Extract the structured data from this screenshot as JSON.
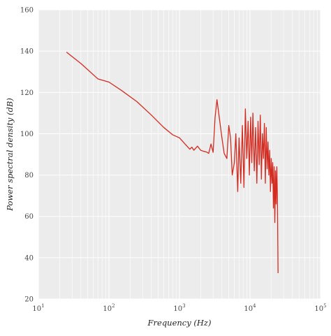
{
  "chart_data": {
    "type": "line",
    "xlabel": "Frequency (Hz)",
    "ylabel": "Power spectral density (dB)",
    "xscale": "log",
    "xlim": [
      10,
      100000
    ],
    "ylim": [
      20,
      160
    ],
    "x_ticks": [
      {
        "base": "10",
        "exp": "1",
        "value": 10
      },
      {
        "base": "10",
        "exp": "2",
        "value": 100
      },
      {
        "base": "10",
        "exp": "3",
        "value": 1000
      },
      {
        "base": "10",
        "exp": "4",
        "value": 10000
      },
      {
        "base": "10",
        "exp": "5",
        "value": 100000
      }
    ],
    "y_ticks": [
      "20",
      "40",
      "60",
      "80",
      "100",
      "120",
      "140",
      "160"
    ],
    "grid": true,
    "background_color": "#ececec",
    "grid_color": "#ffffff",
    "series": [
      {
        "color": "#d42a1f",
        "x": [
          25,
          40,
          70,
          100,
          150,
          250,
          400,
          600,
          800,
          1000,
          1200,
          1400,
          1500,
          1600,
          1800,
          2000,
          2200,
          2400,
          2600,
          2800,
          3000,
          3200,
          3400,
          3600,
          4000,
          4300,
          4700,
          5000,
          5300,
          5600,
          6000,
          6300,
          6700,
          7000,
          7400,
          7800,
          8200,
          8600,
          9000,
          9400,
          9800,
          10200,
          10600,
          11000,
          11500,
          12000,
          12500,
          13000,
          13500,
          14000,
          14500,
          15000,
          15500,
          16000,
          16500,
          17000,
          17500,
          18000,
          18500,
          19000,
          19500,
          20000,
          20500,
          21000,
          21500,
          22000,
          22500,
          23000,
          23500,
          24000,
          24500,
          25000
        ],
        "y": [
          139.5,
          134,
          126.5,
          125,
          121,
          115.5,
          109,
          103,
          99.5,
          98,
          95,
          92.5,
          93.5,
          92,
          94,
          92,
          91.5,
          91.2,
          90.5,
          95,
          91,
          108,
          116.5,
          110,
          98,
          90.5,
          88,
          104,
          98,
          80,
          86,
          100,
          72,
          98,
          76,
          104,
          74,
          112,
          88,
          106,
          80,
          108,
          86,
          110,
          82,
          103,
          76,
          106,
          85,
          109,
          78,
          100,
          88,
          105,
          76,
          103,
          83,
          96,
          80,
          92,
          72,
          88,
          76,
          86,
          64,
          84,
          57,
          82,
          66,
          84,
          68,
          32.5
        ]
      }
    ]
  }
}
